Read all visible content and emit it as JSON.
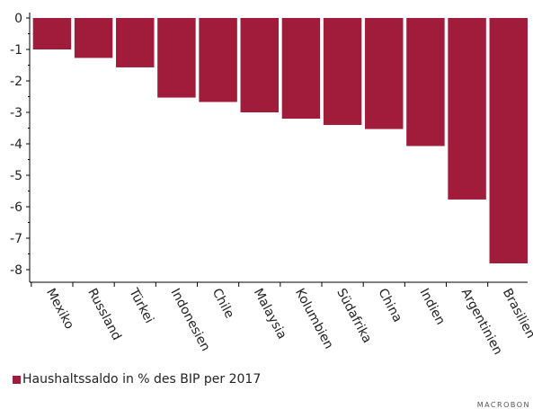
{
  "chart_data": {
    "type": "bar",
    "categories": [
      "Mexiko",
      "Russland",
      "Türkei",
      "Indonesien",
      "Chile",
      "Malaysia",
      "Kolumbien",
      "Südafrika",
      "China",
      "Indien",
      "Argentinien",
      "Brasilien"
    ],
    "series": [
      {
        "name": "Haushaltssaldo in % des BIP per 2017",
        "values": [
          -1.0,
          -1.27,
          -1.57,
          -2.53,
          -2.67,
          -3.0,
          -3.2,
          -3.4,
          -3.53,
          -4.07,
          -5.77,
          -7.8
        ]
      }
    ],
    "yticks": [
      "0",
      "-1",
      "-2",
      "-3",
      "-4",
      "-5",
      "-6",
      "-7",
      "-8"
    ],
    "ylim": [
      -8.4,
      0
    ],
    "title": "",
    "xlabel": "",
    "ylabel": "",
    "legend_position": "bottom-left",
    "bar_color": "#a01c3a"
  },
  "legend": {
    "label": "Haushaltssaldo in % des BIP per 2017"
  },
  "brand": {
    "text": "MACROBON"
  }
}
